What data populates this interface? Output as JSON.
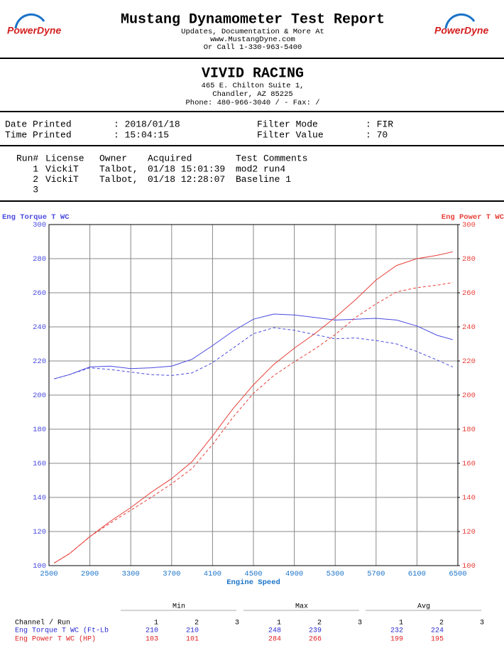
{
  "header": {
    "logo": "PowerDyne",
    "title": "Mustang Dynamometer Test Report",
    "lines": [
      "Updates, Documentation & More At",
      "www.MustangDyne.com",
      "Or Call 1-330-963-5400"
    ]
  },
  "shop": {
    "name": "VIVID RACING",
    "lines": [
      "465 E. Chilton Suite 1,",
      "Chandler, AZ  85225",
      "Phone: 480-966-3040 /  - Fax:  /"
    ]
  },
  "info": [
    [
      {
        "label": "Date Printed",
        "value": ": 2018/01/18"
      },
      {
        "label": "Filter Mode",
        "value": ": FIR"
      }
    ],
    [
      {
        "label": "Time Printed",
        "value": ": 15:04:15"
      },
      {
        "label": "Filter Value",
        "value": ": 70"
      }
    ]
  ],
  "runs": {
    "headers": [
      "Run#",
      "License",
      "Owner",
      "Acquired",
      "Test Comments"
    ],
    "rows": [
      [
        "1",
        "VickiT",
        "Talbot,",
        "01/18 15:01:39",
        "mod2 run4"
      ],
      [
        "2",
        "VickiT",
        "Talbot,",
        "01/18 12:28:07",
        "Baseline 1"
      ],
      [
        "3"
      ]
    ]
  },
  "chart_data": {
    "type": "line",
    "ylabel": "Eng Torque T WC",
    "y2label": "Eng Power T WC",
    "xlabel": "Engine Speed",
    "xlim": [
      2500,
      6500
    ],
    "xticks": [
      2500,
      2900,
      3300,
      3700,
      4100,
      4500,
      4900,
      5300,
      5700,
      6100,
      6500
    ],
    "ylim": [
      100,
      300
    ],
    "yticks": [
      100,
      120,
      140,
      160,
      180,
      200,
      220,
      240,
      260,
      280,
      300
    ],
    "y2lim": [
      100,
      300
    ],
    "y2ticks": [
      100,
      120,
      140,
      160,
      180,
      200,
      220,
      240,
      260,
      280,
      300
    ],
    "grid": true,
    "x_color": "#1a73c8",
    "x": [
      2550,
      2700,
      2900,
      3100,
      3300,
      3500,
      3700,
      3900,
      4100,
      4300,
      4500,
      4700,
      4900,
      5100,
      5300,
      5500,
      5700,
      5900,
      6100,
      6300,
      6450
    ],
    "series": [
      {
        "color": "#4a4ae0",
        "dash": false,
        "values": [
          209.5,
          212,
          216.5,
          217,
          215.5,
          216,
          217,
          221,
          229,
          237.5,
          244.5,
          247.5,
          247,
          245.5,
          244,
          244.5,
          245,
          244,
          240.5,
          235,
          232.5
        ]
      },
      {
        "color": "#4a4ae0",
        "dash": true,
        "values": [
          209.5,
          212,
          216,
          215,
          213.5,
          212,
          211.5,
          213,
          219,
          227.5,
          236,
          239.5,
          238,
          235.5,
          233,
          233.5,
          232,
          230,
          225.5,
          220.5,
          216.5
        ]
      },
      {
        "color": "#e8403a",
        "dash": false,
        "axis": "y2",
        "values": [
          101.5,
          107,
          117,
          126,
          134,
          143,
          151,
          161,
          176,
          192,
          206,
          218,
          227.5,
          236,
          245.5,
          256,
          267.5,
          276,
          280,
          282,
          284
        ]
      },
      {
        "color": "#e8403a",
        "dash": true,
        "axis": "y2",
        "values": [
          101.5,
          107,
          117,
          125,
          132.5,
          140,
          148,
          157,
          171,
          187,
          201,
          211.5,
          219.5,
          227,
          235.5,
          245.5,
          253.5,
          260.5,
          263,
          264.5,
          266
        ]
      }
    ]
  },
  "stats": {
    "groups": [
      "Min",
      "Max",
      "Avg"
    ],
    "row_header": "Channel / Run",
    "run_numbers": [
      "1",
      "2",
      "3"
    ],
    "rows": [
      {
        "label": "Eng Torque T WC (Ft-Lb",
        "color": "#2a2ad0",
        "min": [
          210,
          210
        ],
        "max": [
          248,
          239
        ],
        "avg": [
          232,
          224
        ]
      },
      {
        "label": "Eng Power T WC (HP)",
        "color": "#e02020",
        "min": [
          103,
          101
        ],
        "max": [
          284,
          266
        ],
        "avg": [
          199,
          195
        ]
      }
    ]
  }
}
